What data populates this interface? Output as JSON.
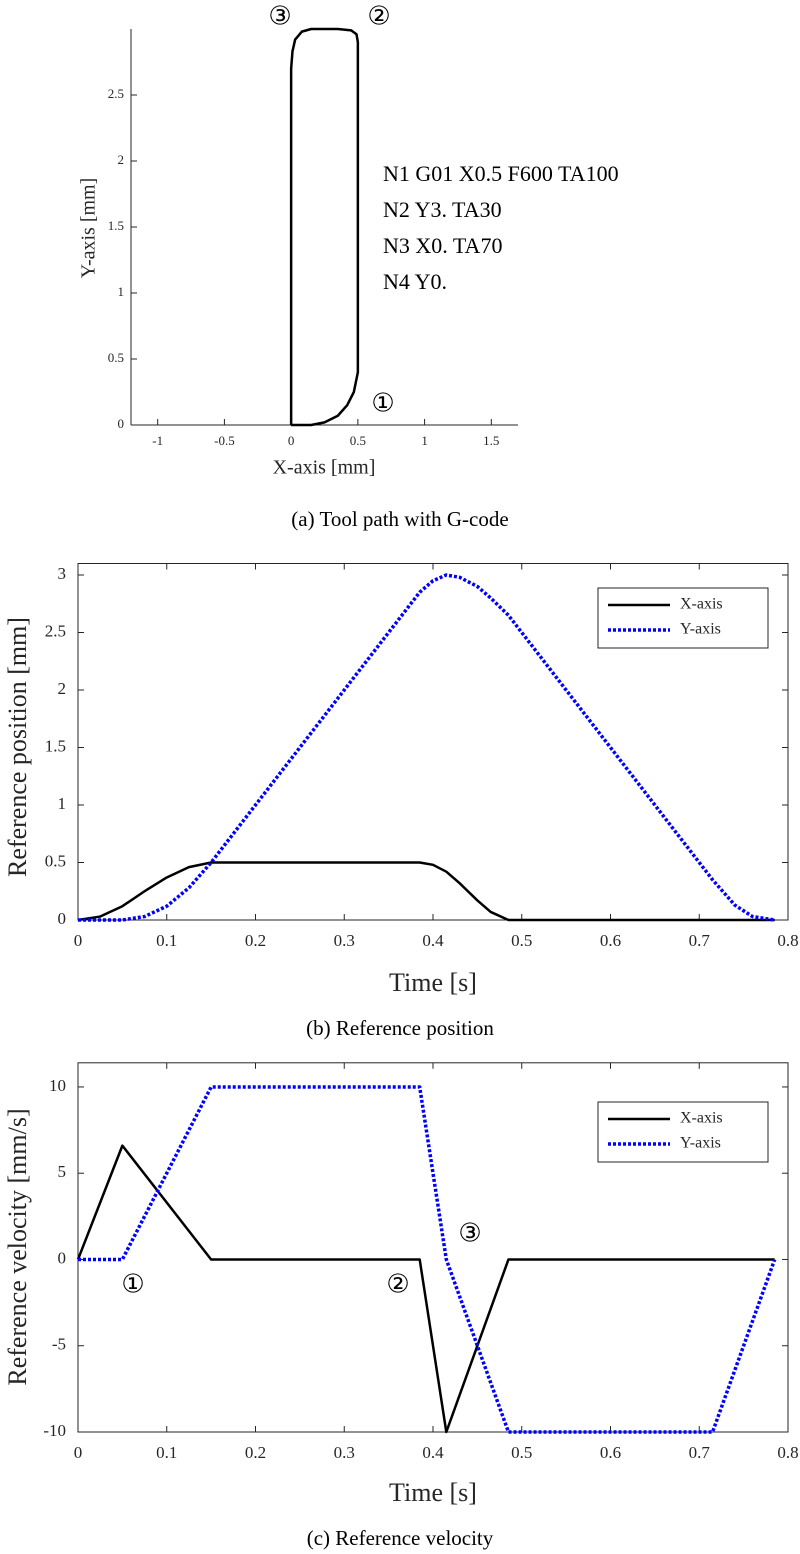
{
  "chart_data": [
    {
      "type": "line",
      "caption": "(a) Tool path with G-code",
      "xlabel": "X-axis [mm]",
      "ylabel": "Y-axis [mm]",
      "x": [
        0,
        0.15,
        0.25,
        0.35,
        0.42,
        0.47,
        0.5,
        0.5,
        0.49,
        0.45,
        0.35,
        0.15,
        0.08,
        0.03,
        0.01,
        0,
        0
      ],
      "series": [
        {
          "color": "#000000",
          "line_style": "solid",
          "values": [
            0,
            0,
            0.02,
            0.07,
            0.15,
            0.25,
            0.4,
            2.9,
            2.96,
            2.99,
            3,
            3,
            2.98,
            2.92,
            2.83,
            2.7,
            0
          ]
        }
      ],
      "xlim": [
        -1.2,
        1.7
      ],
      "ylim": [
        0,
        3
      ],
      "xticks": [
        -1,
        -0.5,
        0,
        0.5,
        1,
        1.5
      ],
      "yticks": [
        0,
        0.5,
        1,
        1.5,
        2,
        2.5
      ],
      "box": false,
      "annotations": [
        "③",
        "②",
        "①"
      ],
      "text_lines": [
        "N1 G01 X0.5 F600 TA100",
        "N2 Y3. TA30",
        "N3 X0. TA70",
        "N4 Y0."
      ]
    },
    {
      "type": "line",
      "caption": "(b) Reference position",
      "xlabel": "Time [s]",
      "ylabel": "Reference position [mm]",
      "x": [
        0,
        0.025,
        0.05,
        0.075,
        0.1,
        0.125,
        0.15,
        0.2,
        0.3,
        0.385,
        0.4,
        0.415,
        0.43,
        0.45,
        0.465,
        0.485,
        0.6,
        0.715,
        0.74,
        0.76,
        0.785
      ],
      "series": [
        {
          "name": "X-axis",
          "color": "#000000",
          "line_style": "solid",
          "values": [
            0,
            0.03,
            0.12,
            0.25,
            0.37,
            0.46,
            0.5,
            0.5,
            0.5,
            0.5,
            0.48,
            0.42,
            0.32,
            0.17,
            0.07,
            0,
            0,
            0,
            0,
            0,
            0
          ]
        },
        {
          "name": "Y-axis",
          "color": "#0000ff",
          "line_style": "dotted",
          "values": [
            0,
            0,
            0,
            0.03,
            0.12,
            0.28,
            0.5,
            1.0,
            2.0,
            2.85,
            2.95,
            3.0,
            2.98,
            2.9,
            2.8,
            2.65,
            1.5,
            0.35,
            0.13,
            0.03,
            0
          ]
        }
      ],
      "xlim": [
        0,
        0.8
      ],
      "ylim": [
        0,
        3.1
      ],
      "xticks": [
        0,
        0.1,
        0.2,
        0.3,
        0.4,
        0.5,
        0.6,
        0.7,
        0.8
      ],
      "yticks": [
        0,
        0.5,
        1,
        1.5,
        2,
        2.5,
        3
      ],
      "box": true,
      "legend": "upper right"
    },
    {
      "type": "line",
      "caption": "(c) Reference velocity",
      "xlabel": "Time [s]",
      "ylabel": "Reference velocity [mm/s]",
      "x": [
        0,
        0.05,
        0.15,
        0.385,
        0.415,
        0.485,
        0.715,
        0.785
      ],
      "series": [
        {
          "name": "X-axis",
          "color": "#000000",
          "line_style": "solid",
          "values": [
            0,
            6.6,
            0,
            0,
            -10,
            0,
            0,
            0
          ]
        },
        {
          "name": "Y-axis",
          "color": "#0000ff",
          "line_style": "dotted",
          "values": [
            0,
            0,
            10,
            10,
            0,
            -10,
            -10,
            0
          ]
        }
      ],
      "xlim": [
        0,
        0.8
      ],
      "ylim": [
        -10,
        11.4
      ],
      "xticks": [
        0,
        0.1,
        0.2,
        0.3,
        0.4,
        0.5,
        0.6,
        0.7,
        0.8
      ],
      "yticks": [
        -10,
        -5,
        0,
        5,
        10
      ],
      "box": true,
      "legend": "upper right",
      "annotations": [
        "①",
        "②",
        "③"
      ]
    }
  ]
}
